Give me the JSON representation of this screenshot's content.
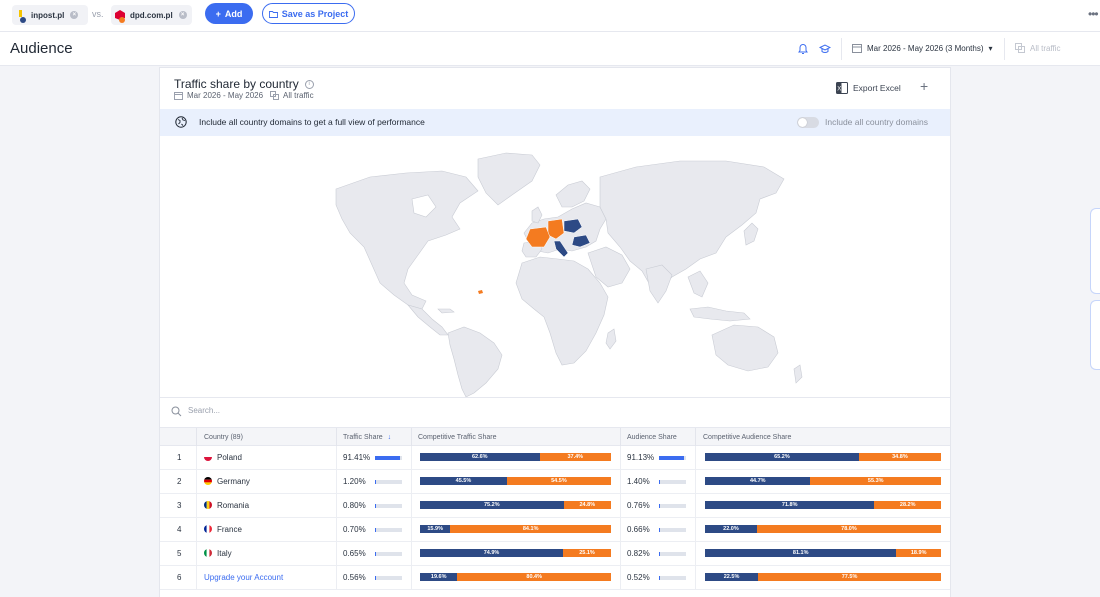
{
  "compare": {
    "site1": {
      "name": "inpost.pl",
      "dot_color": "#2d4a85",
      "fav_color": "#f5c400"
    },
    "vs_label": "vs.",
    "site2": {
      "name": "dpd.com.pl",
      "dot_color": "#f47b20",
      "fav_color": "#dc0032"
    },
    "add_label": "Add",
    "save_label": "Save as Project"
  },
  "header": {
    "title": "Audience",
    "date_range": "Mar 2026 - May 2026 (3 Months)",
    "traffic_filter": "All traffic"
  },
  "card": {
    "title": "Traffic share by country",
    "sub_date": "Mar 2026 - May 2026",
    "sub_traffic": "All traffic",
    "export_label": "Export Excel",
    "banner_text": "Include all country domains to get a full view of performance",
    "toggle_label": "Include all country domains",
    "search_placeholder": "Search..."
  },
  "colors": {
    "site1": "#2d4a85",
    "site2": "#f47b20",
    "accent": "#3b6cf0"
  },
  "table": {
    "headers": {
      "country": "Country (89)",
      "traffic_share": "Traffic Share",
      "competitive_traffic": "Competitive Traffic Share",
      "audience_share": "Audience Share",
      "competitive_audience": "Competitive Audience Share"
    },
    "rows": [
      {
        "idx": "1",
        "country": "Poland",
        "flag": "pl",
        "traffic": "91.41%",
        "traffic_val": 91.41,
        "ct1": 62.6,
        "ct1_label": "62.6%",
        "ct2": 37.4,
        "ct2_label": "37.4%",
        "audience": "91.13%",
        "audience_val": 91.13,
        "ca1": 65.2,
        "ca1_label": "65.2%",
        "ca2": 34.8,
        "ca2_label": "34.8%"
      },
      {
        "idx": "2",
        "country": "Germany",
        "flag": "de",
        "traffic": "1.20%",
        "traffic_val": 1.2,
        "ct1": 45.5,
        "ct1_label": "45.5%",
        "ct2": 54.5,
        "ct2_label": "54.5%",
        "audience": "1.40%",
        "audience_val": 1.4,
        "ca1": 44.7,
        "ca1_label": "44.7%",
        "ca2": 55.3,
        "ca2_label": "55.3%"
      },
      {
        "idx": "3",
        "country": "Romania",
        "flag": "ro",
        "traffic": "0.80%",
        "traffic_val": 0.8,
        "ct1": 75.2,
        "ct1_label": "75.2%",
        "ct2": 24.8,
        "ct2_label": "24.8%",
        "audience": "0.76%",
        "audience_val": 0.76,
        "ca1": 71.8,
        "ca1_label": "71.8%",
        "ca2": 28.2,
        "ca2_label": "28.2%"
      },
      {
        "idx": "4",
        "country": "France",
        "flag": "fr",
        "traffic": "0.70%",
        "traffic_val": 0.7,
        "ct1": 15.9,
        "ct1_label": "15.9%",
        "ct2": 84.1,
        "ct2_label": "84.1%",
        "audience": "0.66%",
        "audience_val": 0.66,
        "ca1": 22.0,
        "ca1_label": "22.0%",
        "ca2": 78.0,
        "ca2_label": "78.0%"
      },
      {
        "idx": "5",
        "country": "Italy",
        "flag": "it",
        "traffic": "0.65%",
        "traffic_val": 0.65,
        "ct1": 74.9,
        "ct1_label": "74.9%",
        "ct2": 25.1,
        "ct2_label": "25.1%",
        "audience": "0.82%",
        "audience_val": 0.82,
        "ca1": 81.1,
        "ca1_label": "81.1%",
        "ca2": 18.9,
        "ca2_label": "18.9%"
      },
      {
        "idx": "6",
        "country": "Upgrade your Account",
        "flag": "",
        "upgrade": true,
        "traffic": "0.56%",
        "traffic_val": 0.56,
        "ct1": 19.6,
        "ct1_label": "19.6%",
        "ct2": 80.4,
        "ct2_label": "80.4%",
        "audience": "0.52%",
        "audience_val": 0.52,
        "ca1": 22.5,
        "ca1_label": "22.5%",
        "ca2": 77.5,
        "ca2_label": "77.5%"
      }
    ]
  }
}
